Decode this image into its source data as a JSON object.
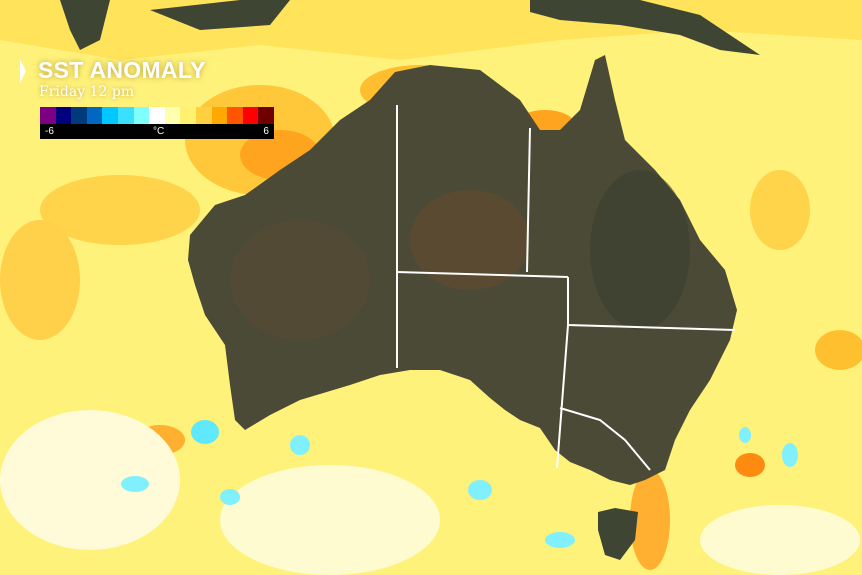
{
  "legend": {
    "title": "SST ANOMALY",
    "subtitle": "Friday 12 pm",
    "min_label": "-6",
    "unit_label": "°C",
    "max_label": "6",
    "colors": [
      "#7e0082",
      "#00007e",
      "#003a7a",
      "#0068c0",
      "#00c8ff",
      "#3ce0ff",
      "#80ffff",
      "#ffffff",
      "#ffffb0",
      "#fff270",
      "#ffd040",
      "#ffa800",
      "#ff5400",
      "#ff0000",
      "#6e0000"
    ]
  },
  "map": {
    "ocean_color": "#fff27a",
    "land_color": "#4a4a36",
    "border_color": "#ffffff"
  }
}
